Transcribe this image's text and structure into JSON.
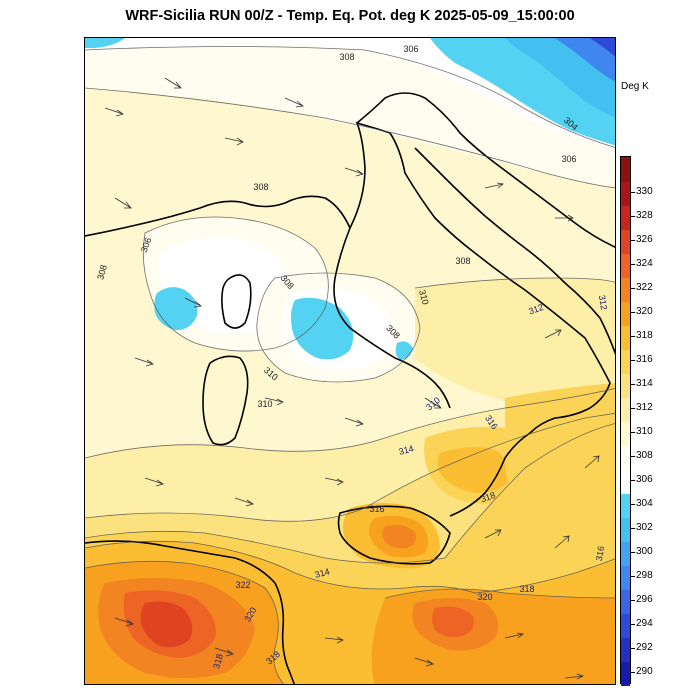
{
  "title": "WRF-Sicilia RUN 00/Z - Temp. Eq. Pot. deg K 2025-05-09_15:00:00",
  "colorbar": {
    "unit": "Deg K",
    "levels": [
      {
        "value": 290,
        "label": "290",
        "color": "#1a1aa8"
      },
      {
        "value": 292,
        "label": "292",
        "color": "#2330c0"
      },
      {
        "value": 294,
        "label": "294",
        "color": "#2f4ad6"
      },
      {
        "value": 296,
        "label": "296",
        "color": "#3a66e6"
      },
      {
        "value": 298,
        "label": "298",
        "color": "#3f86ee"
      },
      {
        "value": 300,
        "label": "300",
        "color": "#42a4f0"
      },
      {
        "value": 302,
        "label": "302",
        "color": "#43bff0"
      },
      {
        "value": 304,
        "label": "304",
        "color": "#54d2f2"
      },
      {
        "value": 306,
        "label": "306",
        "color": "#ffffff"
      },
      {
        "value": 308,
        "label": "308",
        "color": "#fffdf0"
      },
      {
        "value": 310,
        "label": "310",
        "color": "#fef7cf"
      },
      {
        "value": 312,
        "label": "312",
        "color": "#fdeea8"
      },
      {
        "value": 314,
        "label": "314",
        "color": "#fce27e"
      },
      {
        "value": 316,
        "label": "316",
        "color": "#fbd356"
      },
      {
        "value": 318,
        "label": "318",
        "color": "#fbbd32"
      },
      {
        "value": 320,
        "label": "320",
        "color": "#f7a11f"
      },
      {
        "value": 322,
        "label": "322",
        "color": "#f28422"
      },
      {
        "value": 324,
        "label": "324",
        "color": "#ec6524"
      },
      {
        "value": 326,
        "label": "326",
        "color": "#de4422"
      },
      {
        "value": 328,
        "label": "328",
        "color": "#c7261c"
      },
      {
        "value": 330,
        "label": "330",
        "color": "#a81616"
      },
      {
        "value": 332,
        "label": "",
        "color": "#8e1010"
      }
    ]
  },
  "contour_labels": [
    {
      "text": "306",
      "color": "#222222"
    },
    {
      "text": "308",
      "color": "#222222"
    },
    {
      "text": "304",
      "color": "#222222"
    },
    {
      "text": "306",
      "color": "#222222"
    },
    {
      "text": "308",
      "color": "#222222"
    },
    {
      "text": "306",
      "color": "#222222"
    },
    {
      "text": "308",
      "color": "#222222"
    },
    {
      "text": "308",
      "color": "#222222"
    },
    {
      "text": "308",
      "color": "#222222"
    },
    {
      "text": "308",
      "color": "#222222"
    },
    {
      "text": "310",
      "color": "#222222"
    },
    {
      "text": "310",
      "color": "#222222"
    },
    {
      "text": "310",
      "color": "#222222"
    },
    {
      "text": "312",
      "color": "#222266"
    },
    {
      "text": "310",
      "color": "#222266"
    },
    {
      "text": "312",
      "color": "#222266"
    },
    {
      "text": "314",
      "color": "#222266"
    },
    {
      "text": "316",
      "color": "#222266"
    },
    {
      "text": "316",
      "color": "#222266"
    },
    {
      "text": "318",
      "color": "#222266"
    },
    {
      "text": "314",
      "color": "#222266"
    },
    {
      "text": "316",
      "color": "#222266"
    },
    {
      "text": "318",
      "color": "#222266"
    },
    {
      "text": "320",
      "color": "#222266"
    },
    {
      "text": "322",
      "color": "#222266"
    },
    {
      "text": "320",
      "color": "#222266"
    },
    {
      "text": "318",
      "color": "#222266"
    },
    {
      "text": "318",
      "color": "#222266"
    }
  ]
}
